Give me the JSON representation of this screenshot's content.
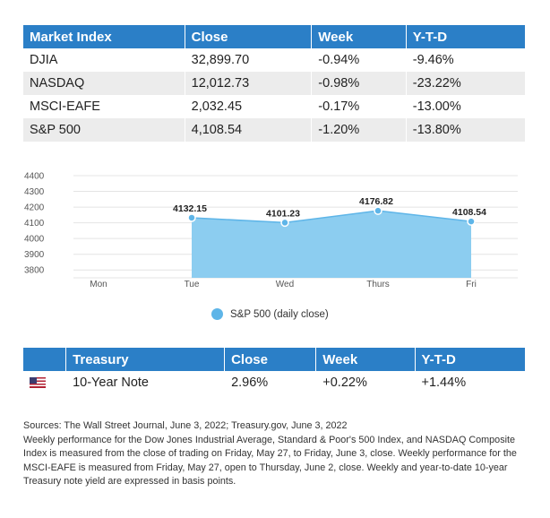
{
  "market_table": {
    "headers": [
      "Market Index",
      "Close",
      "Week",
      "Y-T-D"
    ],
    "rows": [
      [
        "DJIA",
        "32,899.70",
        "-0.94%",
        "-9.46%"
      ],
      [
        "NASDAQ",
        "12,012.73",
        "-0.98%",
        "-23.22%"
      ],
      [
        "MSCI-EAFE",
        "2,032.45",
        "-0.17%",
        "-13.00%"
      ],
      [
        "S&P 500",
        "4,108.54",
        "-1.20%",
        "-13.80%"
      ]
    ]
  },
  "chart_data": {
    "type": "area",
    "categories": [
      "Mon",
      "Tue",
      "Wed",
      "Thurs",
      "Fri"
    ],
    "series": [
      {
        "name": "S&P 500 (daily close)",
        "values": [
          null,
          4132.15,
          4101.23,
          4176.82,
          4108.54
        ],
        "labels": [
          "",
          "4132.15",
          "4101.23",
          "4176.82",
          "4108.54"
        ]
      }
    ],
    "y_ticks": [
      3800,
      3900,
      4000,
      4100,
      4200,
      4300,
      4400
    ],
    "ylim": [
      3750,
      4400
    ],
    "grid": true,
    "legend_position": "bottom",
    "colors": {
      "fill": "#8ccdf0",
      "line": "#5eb5e8",
      "point": "#5eb5e8"
    }
  },
  "treasury_table": {
    "headers": [
      "",
      "Treasury",
      "Close",
      "Week",
      "Y-T-D"
    ],
    "row": {
      "flag_icon": "us-flag-icon",
      "name": "10-Year Note",
      "close": "2.96%",
      "week": "+0.22%",
      "ytd": "+1.44%"
    }
  },
  "notes": {
    "sources": "Sources: The Wall Street Journal, June 3, 2022; Treasury.gov, June 3, 2022",
    "body": "Weekly performance for the Dow Jones Industrial Average, Standard & Poor's 500 Index, and NASDAQ Composite Index is measured from the close of trading on Friday, May 27, to Friday, June 3, close. Weekly performance for the MSCI-EAFE is measured from Friday, May 27, open to Thursday, June 2, close. Weekly and year-to-date 10-year Treasury note yield are expressed in basis points."
  },
  "colors": {
    "header": "#2b7fc7",
    "stripe": "#ececec"
  }
}
